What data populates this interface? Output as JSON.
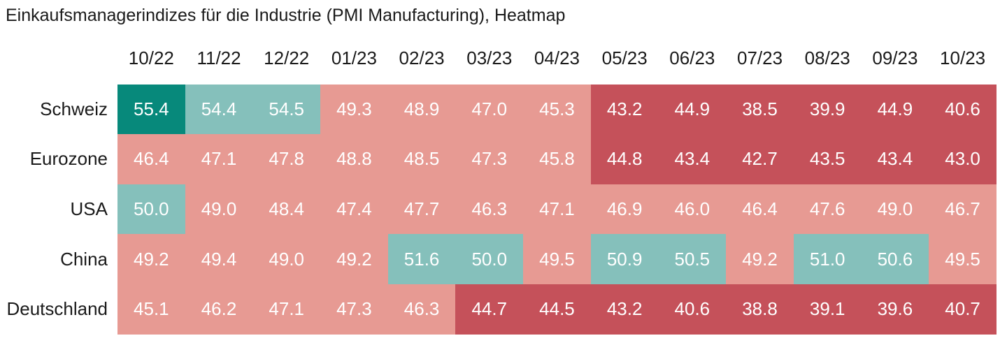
{
  "chart_data": {
    "type": "heatmap",
    "title": "Einkaufsmanagerindizes für die Industrie (PMI Manufacturing), Heatmap",
    "columns": [
      "10/22",
      "11/22",
      "12/22",
      "01/23",
      "02/23",
      "03/23",
      "04/23",
      "05/23",
      "06/23",
      "07/23",
      "08/23",
      "09/23",
      "10/23"
    ],
    "rows": [
      {
        "label": "Schweiz",
        "values": [
          55.4,
          54.4,
          54.5,
          49.3,
          48.9,
          47.0,
          45.3,
          43.2,
          44.9,
          38.5,
          39.9,
          44.9,
          40.6
        ]
      },
      {
        "label": "Eurozone",
        "values": [
          46.4,
          47.1,
          47.8,
          48.8,
          48.5,
          47.3,
          45.8,
          44.8,
          43.4,
          42.7,
          43.5,
          43.4,
          43.0
        ]
      },
      {
        "label": "USA",
        "values": [
          50.0,
          49.0,
          48.4,
          47.4,
          47.7,
          46.3,
          47.1,
          46.9,
          46.0,
          46.4,
          47.6,
          49.0,
          46.7
        ]
      },
      {
        "label": "China",
        "values": [
          49.2,
          49.4,
          49.0,
          49.2,
          51.6,
          50.0,
          49.5,
          50.9,
          50.5,
          49.2,
          51.0,
          50.6,
          49.5
        ]
      },
      {
        "label": "Deutschland",
        "values": [
          45.1,
          46.2,
          47.1,
          47.3,
          46.3,
          44.7,
          44.5,
          43.2,
          40.6,
          38.8,
          39.1,
          39.6,
          40.7
        ]
      }
    ],
    "color_scale": [
      {
        "min": 55,
        "color": "#07897b",
        "name": "strong-expansion"
      },
      {
        "min": 50,
        "color": "#85c0bb",
        "name": "expansion"
      },
      {
        "min": 45,
        "color": "#e79a93",
        "name": "contraction"
      },
      {
        "min": 0,
        "color": "#c5515a",
        "name": "strong-contraction"
      }
    ],
    "value_text_color": "#ffffff",
    "layout": {
      "legend": "none",
      "grid": "off",
      "value_format": "one-decimal"
    }
  }
}
